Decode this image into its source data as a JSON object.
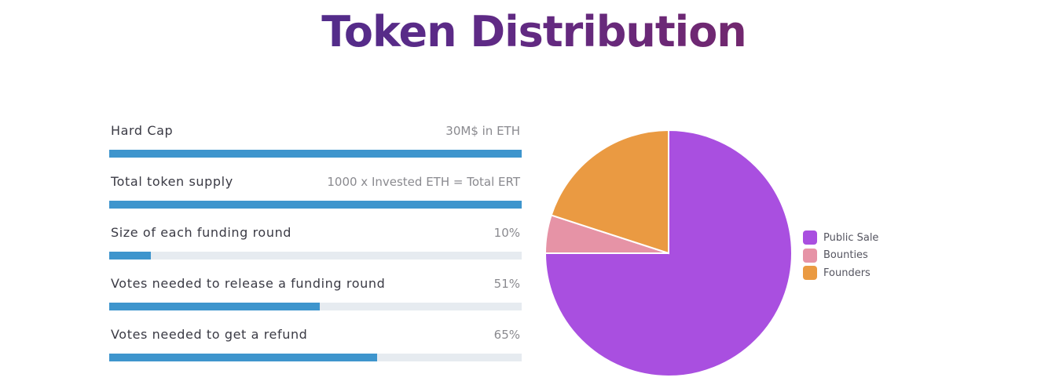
{
  "title": "Token Distribution",
  "stats": [
    {
      "label": "Hard Cap",
      "value": "30M$ in ETH",
      "fill_percent": 100
    },
    {
      "label": "Total token supply",
      "value": "1000 x Invested ETH = Total ERT",
      "fill_percent": 100
    },
    {
      "label": "Size of each funding round",
      "value": "10%",
      "fill_percent": 10
    },
    {
      "label": "Votes needed to release a funding round",
      "value": "51%",
      "fill_percent": 51
    },
    {
      "label": "Votes needed to get a refund",
      "value": "65%",
      "fill_percent": 65
    }
  ],
  "colors": {
    "bar_fill": "#3e95cd",
    "bar_track": "#e6ebf0"
  },
  "chart_data": {
    "type": "pie",
    "title": "",
    "categories": [
      "Public Sale",
      "Bounties",
      "Founders"
    ],
    "values": [
      75,
      5,
      20
    ],
    "colors": [
      "#a94fe0",
      "#e693a6",
      "#ea9a42"
    ],
    "legend_position": "right",
    "start_angle_deg": 0,
    "direction": "clockwise",
    "border_color": "#ffffff"
  }
}
